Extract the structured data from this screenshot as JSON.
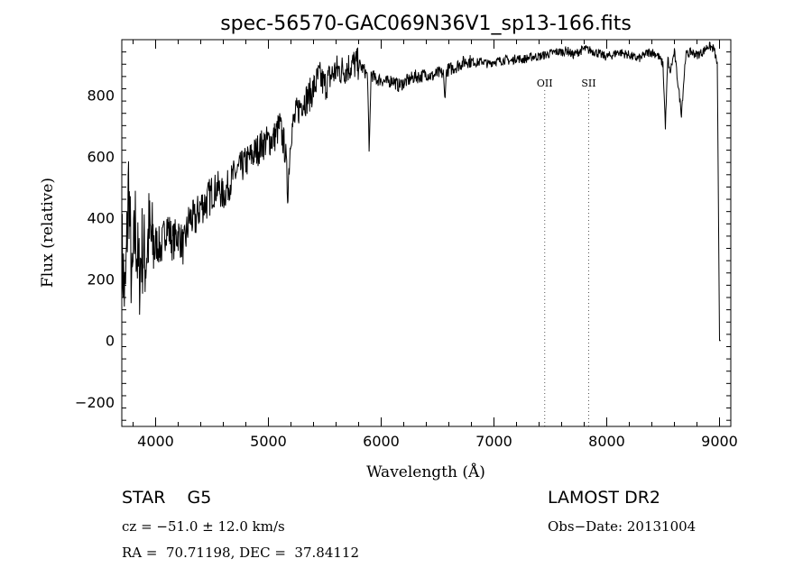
{
  "chart_data": {
    "type": "line",
    "title": "spec-56570-GAC069N36V1_sp13-166.fits",
    "xlabel": "Wavelength (Å)",
    "ylabel": "Flux (relative)",
    "xlim": [
      3700,
      9100
    ],
    "ylim": [
      -280,
      980
    ],
    "x_ticks": [
      4000,
      5000,
      6000,
      7000,
      8000,
      9000
    ],
    "y_ticks": [
      -200,
      0,
      200,
      400,
      600,
      800
    ],
    "grid": false,
    "series": [
      {
        "x": [
          3700,
          3730,
          3760,
          3790,
          3820,
          3850,
          3880,
          3910,
          3940,
          3970,
          4000,
          4050,
          4100,
          4150,
          4200,
          4250,
          4300,
          4350,
          4400,
          4450,
          4500,
          4550,
          4600,
          4650,
          4700,
          4750,
          4800,
          4850,
          4900,
          4950,
          5000,
          5050,
          5100,
          5150,
          5170,
          5200,
          5250,
          5300,
          5350,
          5400,
          5450,
          5500,
          5550,
          5600,
          5650,
          5700,
          5750,
          5800,
          5850,
          5880,
          5893,
          5910,
          5950,
          6000,
          6050,
          6100,
          6150,
          6200,
          6250,
          6300,
          6350,
          6400,
          6450,
          6500,
          6550,
          6563,
          6580,
          6650,
          6700,
          6750,
          6800,
          6850,
          6900,
          6950,
          7000,
          7050,
          7100,
          7150,
          7200,
          7250,
          7300,
          7350,
          7400,
          7450,
          7500,
          7550,
          7600,
          7650,
          7700,
          7750,
          7800,
          7850,
          7900,
          7950,
          8000,
          8050,
          8100,
          8150,
          8200,
          8250,
          8300,
          8350,
          8400,
          8450,
          8498,
          8520,
          8542,
          8560,
          8600,
          8662,
          8700,
          8750,
          8800,
          8850,
          8900,
          8950,
          8980,
          9000,
          9010
        ],
        "y": [
          300,
          120,
          520,
          150,
          380,
          200,
          300,
          260,
          350,
          310,
          320,
          300,
          380,
          320,
          350,
          300,
          400,
          390,
          440,
          450,
          480,
          500,
          470,
          510,
          540,
          560,
          580,
          600,
          620,
          640,
          650,
          660,
          700,
          620,
          480,
          680,
          740,
          780,
          790,
          820,
          860,
          830,
          860,
          880,
          880,
          890,
          900,
          900,
          880,
          860,
          600,
          870,
          850,
          850,
          840,
          850,
          830,
          840,
          850,
          860,
          860,
          870,
          860,
          870,
          870,
          790,
          880,
          890,
          900,
          910,
          910,
          905,
          910,
          900,
          910,
          910,
          915,
          910,
          920,
          915,
          920,
          925,
          925,
          930,
          935,
          940,
          940,
          945,
          930,
          940,
          950,
          945,
          940,
          930,
          925,
          930,
          940,
          935,
          930,
          920,
          920,
          935,
          940,
          930,
          900,
          700,
          920,
          870,
          940,
          740,
          930,
          940,
          930,
          940,
          960,
          950,
          900,
          0,
          0
        ]
      }
    ],
    "line_markers": [
      {
        "label": "OII",
        "x": 7450
      },
      {
        "label": "SII",
        "x": 7840
      }
    ]
  },
  "info": {
    "classification": "STAR    G5",
    "survey": "LAMOST DR2",
    "velocity": "cz = −51.0 ± 12.0 km/s",
    "obs_date": "Obs−Date: 20131004",
    "coords": "RA =  70.71198, DEC =  37.84112"
  }
}
